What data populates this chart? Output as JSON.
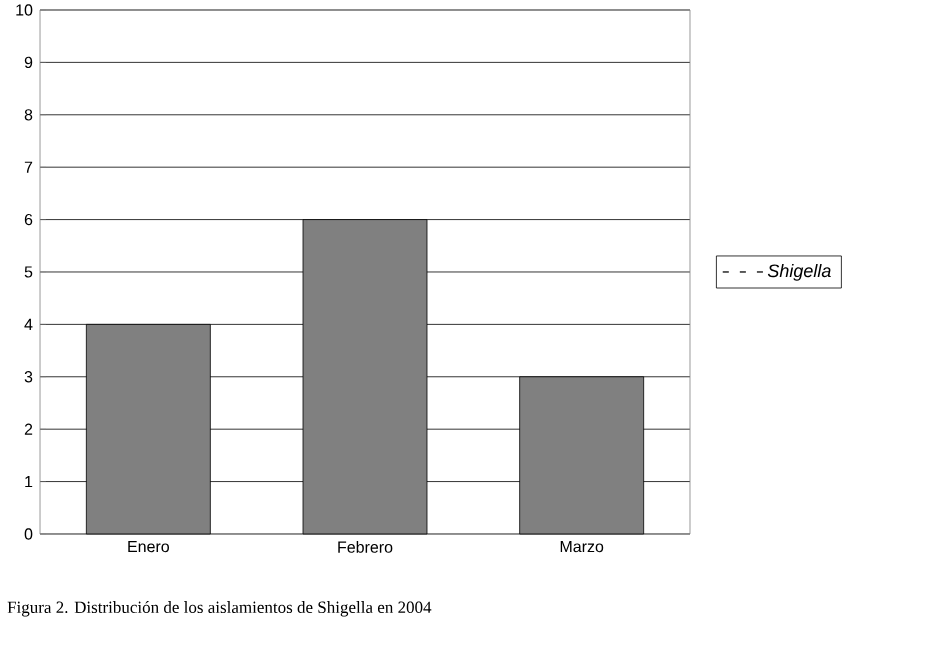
{
  "chart_data": {
    "type": "bar",
    "categories": [
      "Enero",
      "Febrero",
      "Marzo"
    ],
    "series": [
      {
        "name": "Shigella",
        "color": "#808080",
        "values": [
          4,
          6,
          3
        ]
      }
    ],
    "ylim": [
      0,
      10
    ],
    "yticks": [
      0,
      1,
      2,
      3,
      4,
      5,
      6,
      7,
      8,
      9,
      10
    ],
    "grid": "y",
    "legend": "right",
    "annotations": [
      "Figura 2. Distribución de los aislamientos de Shigella en 2004"
    ]
  }
}
